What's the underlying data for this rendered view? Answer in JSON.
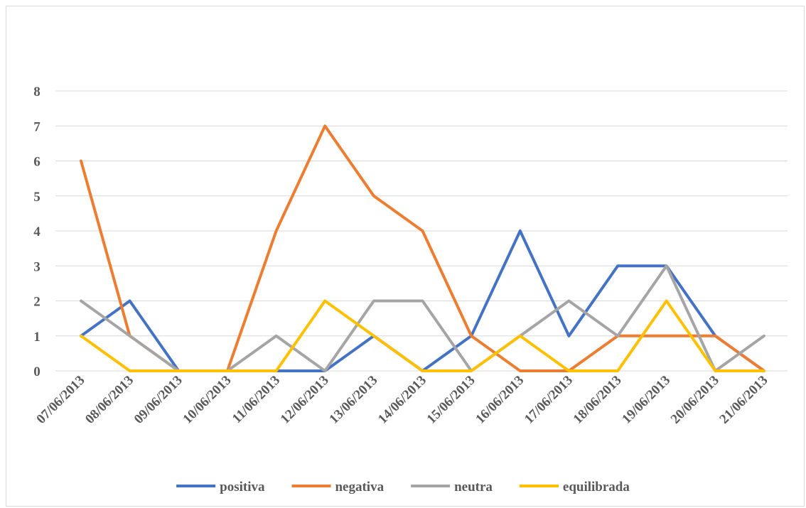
{
  "chart_data": {
    "type": "line",
    "title": "",
    "xlabel": "",
    "ylabel": "",
    "categories": [
      "07/06/2013",
      "08/06/2013",
      "09/06/2013",
      "10/06/2013",
      "11/06/2013",
      "12/06/2013",
      "13/06/2013",
      "14/06/2013",
      "15/06/2013",
      "16/06/2013",
      "17/06/2013",
      "18/06/2013",
      "19/06/2013",
      "20/06/2013",
      "21/06/2013"
    ],
    "ylim": [
      0,
      8
    ],
    "yticks": [
      "0",
      "1",
      "2",
      "3",
      "4",
      "5",
      "6",
      "7",
      "8"
    ],
    "grid": true,
    "legend_position": "bottom",
    "series": [
      {
        "name": "positiva",
        "color": "#4472c4",
        "values": [
          1,
          2,
          0,
          0,
          0,
          0,
          1,
          0,
          1,
          4,
          1,
          3,
          3,
          1,
          0
        ]
      },
      {
        "name": "negativa",
        "color": "#ed7d31",
        "values": [
          6,
          1,
          0,
          0,
          4,
          7,
          5,
          4,
          1,
          0,
          0,
          1,
          1,
          1,
          0
        ]
      },
      {
        "name": "neutra",
        "color": "#a5a5a5",
        "values": [
          2,
          1,
          0,
          0,
          1,
          0,
          2,
          2,
          0,
          1,
          2,
          1,
          3,
          0,
          1
        ]
      },
      {
        "name": "equilibrada",
        "color": "#ffc000",
        "values": [
          1,
          0,
          0,
          0,
          0,
          2,
          1,
          0,
          0,
          1,
          0,
          0,
          2,
          0,
          0
        ]
      }
    ]
  }
}
